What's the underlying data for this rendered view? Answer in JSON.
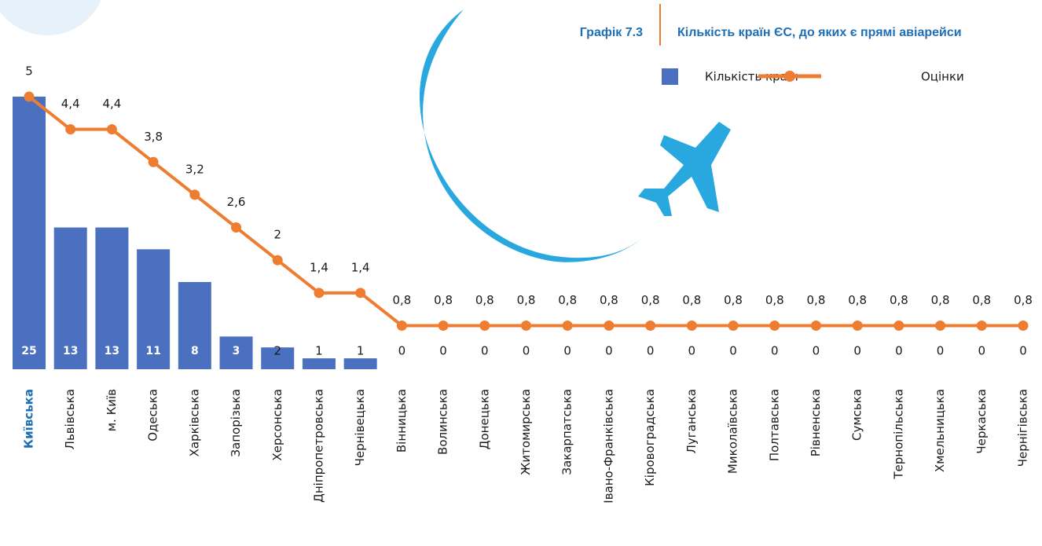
{
  "chart_data": {
    "type": "bar-line",
    "label": "Графік 7.3",
    "title": "Кількість країн ЄС, до яких є прямі авіарейси",
    "categories": [
      "Київська",
      "Львівська",
      "м. Київ",
      "Одеська",
      "Харківська",
      "Запорізька",
      "Херсонська",
      "Дніпропетровська",
      "Чернівецька",
      "Вінницька",
      "Волинська",
      "Донецька",
      "Житомирська",
      "Закарпатська",
      "Івано-Франківська",
      "Кіровоградська",
      "Луганська",
      "Миколаївська",
      "Полтавська",
      "Рівненська",
      "Сумська",
      "Тернопільська",
      "Хмельницька",
      "Черкаська",
      "Чернігівська"
    ],
    "series": [
      {
        "name": "Кількість країн",
        "type": "bar",
        "color": "#4a70bf",
        "values": [
          25,
          13,
          13,
          11,
          8,
          3,
          2,
          1,
          1,
          0,
          0,
          0,
          0,
          0,
          0,
          0,
          0,
          0,
          0,
          0,
          0,
          0,
          0,
          0,
          0
        ]
      },
      {
        "name": "Оцінки",
        "type": "line",
        "axis": "y2",
        "color": "#ee7d31",
        "values": [
          5,
          4.4,
          4.4,
          3.8,
          3.2,
          2.6,
          2,
          1.4,
          1.4,
          0.8,
          0.8,
          0.8,
          0.8,
          0.8,
          0.8,
          0.8,
          0.8,
          0.8,
          0.8,
          0.8,
          0.8,
          0.8,
          0.8,
          0.8,
          0.8
        ],
        "value_labels": [
          "5",
          "4,4",
          "4,4",
          "3,8",
          "3,2",
          "2,6",
          "2",
          "1,4",
          "1,4",
          "0,8",
          "0,8",
          "0,8",
          "0,8",
          "0,8",
          "0,8",
          "0,8",
          "0,8",
          "0,8",
          "0,8",
          "0,8",
          "0,8",
          "0,8",
          "0,8",
          "0,8",
          "0,8"
        ]
      }
    ],
    "ylim": [
      0,
      25
    ],
    "y2lim": [
      0,
      5
    ]
  }
}
